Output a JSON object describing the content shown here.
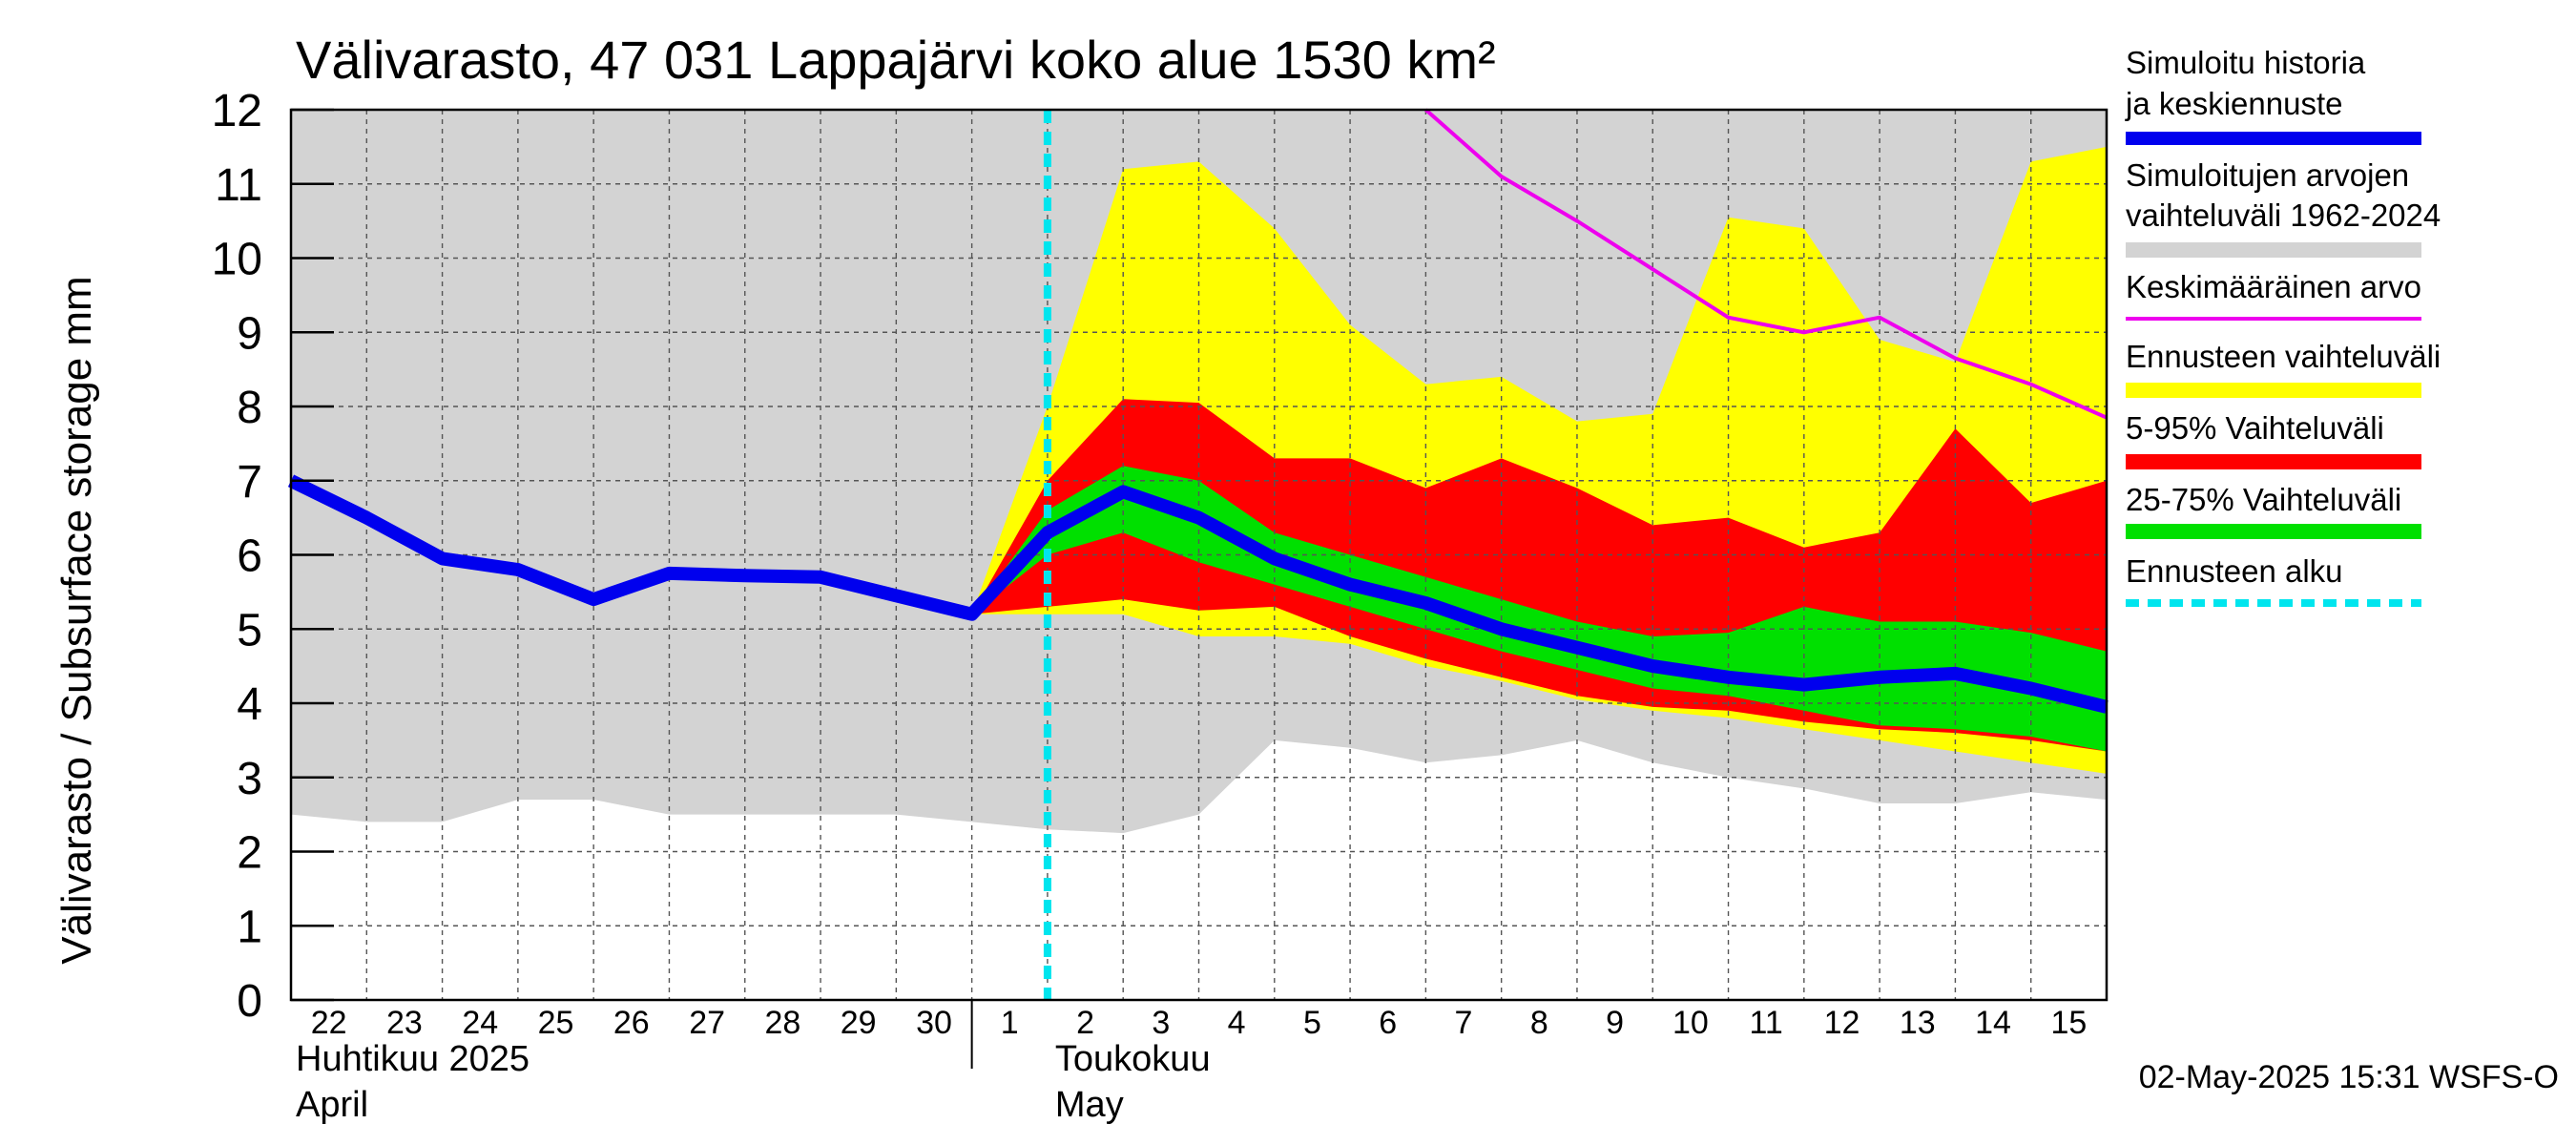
{
  "chart_data": {
    "type": "area",
    "title": "Välivarasto, 47 031 Lappajärvi koko alue 1530 km²",
    "ylabel": "Välivarasto / Subsurface storage  mm",
    "ylim": [
      0,
      12
    ],
    "yticks": [
      0,
      1,
      2,
      3,
      4,
      5,
      6,
      7,
      8,
      9,
      10,
      11,
      12
    ],
    "grid": true,
    "legend_placement": "right",
    "x_day_labels": [
      "22",
      "23",
      "24",
      "25",
      "26",
      "27",
      "28",
      "29",
      "30",
      "1",
      "2",
      "3",
      "4",
      "5",
      "6",
      "7",
      "8",
      "9",
      "10",
      "11",
      "12",
      "13",
      "14",
      "15"
    ],
    "x_dates": [
      "2025-04-22",
      "2025-04-23",
      "2025-04-24",
      "2025-04-25",
      "2025-04-26",
      "2025-04-27",
      "2025-04-28",
      "2025-04-29",
      "2025-04-30",
      "2025-05-01",
      "2025-05-02",
      "2025-05-03",
      "2025-05-04",
      "2025-05-05",
      "2025-05-06",
      "2025-05-07",
      "2025-05-08",
      "2025-05-09",
      "2025-05-10",
      "2025-05-11",
      "2025-05-12",
      "2025-05-13",
      "2025-05-14",
      "2025-05-15",
      "2025-05-16"
    ],
    "month_labels": [
      {
        "fi": "Huhtikuu  2025",
        "en": "April"
      },
      {
        "fi": "Toukokuu",
        "en": "May"
      }
    ],
    "forecast_start_date": "2025-05-02",
    "timestamp": "02-May-2025 15:31 WSFS-O",
    "colors": {
      "hist_range": "#d3d3d3",
      "forecast_range": "#ffff00",
      "p5_95": "#ff0000",
      "p25_75": "#00e000",
      "sim": "#0000ee",
      "mean": "#ee00ee",
      "forecast_start": "#00e5ee"
    },
    "legend": [
      {
        "label": "Simuloitu historia ja keskiennuste",
        "kind": "thick-line",
        "color": "#0000ee"
      },
      {
        "label": "Simuloitujen arvojen vaihteluväli 1962-2024",
        "kind": "band",
        "color": "#d3d3d3"
      },
      {
        "label": "Keskimääräinen arvo",
        "kind": "thin-line",
        "color": "#ee00ee"
      },
      {
        "label": "Ennusteen vaihteluväli",
        "kind": "band",
        "color": "#ffff00"
      },
      {
        "label": "5-95% Vaihteluväli",
        "kind": "band",
        "color": "#ff0000"
      },
      {
        "label": "25-75% Vaihteluväli",
        "kind": "band",
        "color": "#00e000"
      },
      {
        "label": "Ennusteen alku",
        "kind": "dashed",
        "color": "#00e5ee"
      }
    ],
    "series": [
      {
        "name": "Simuloitujen arvojen vaihteluväli 1962-2024",
        "x": [
          "2025-04-22",
          "2025-04-23",
          "2025-04-24",
          "2025-04-25",
          "2025-04-26",
          "2025-04-27",
          "2025-04-28",
          "2025-04-29",
          "2025-04-30",
          "2025-05-01",
          "2025-05-02",
          "2025-05-03",
          "2025-05-04",
          "2025-05-05",
          "2025-05-06",
          "2025-05-07",
          "2025-05-08",
          "2025-05-09",
          "2025-05-10",
          "2025-05-11",
          "2025-05-12",
          "2025-05-13",
          "2025-05-14",
          "2025-05-15",
          "2025-05-16"
        ],
        "lower": [
          2.5,
          2.4,
          2.4,
          2.7,
          2.7,
          2.5,
          2.5,
          2.5,
          2.5,
          2.4,
          2.3,
          2.25,
          2.5,
          3.5,
          3.4,
          3.2,
          3.3,
          3.5,
          3.2,
          3.0,
          2.85,
          2.65,
          2.65,
          2.8,
          2.7
        ],
        "upper": [
          12,
          12,
          12,
          12,
          12,
          12,
          12,
          12,
          12,
          12,
          12,
          12,
          12,
          12,
          12,
          12,
          12,
          12,
          12,
          12,
          12,
          12,
          12,
          12,
          12
        ]
      },
      {
        "name": "Ennusteen vaihteluväli",
        "x": [
          "2025-05-01",
          "2025-05-02",
          "2025-05-03",
          "2025-05-04",
          "2025-05-05",
          "2025-05-06",
          "2025-05-07",
          "2025-05-08",
          "2025-05-09",
          "2025-05-10",
          "2025-05-11",
          "2025-05-12",
          "2025-05-13",
          "2025-05-14",
          "2025-05-15",
          "2025-05-16"
        ],
        "lower": [
          5.2,
          5.2,
          5.2,
          4.9,
          4.9,
          4.8,
          4.5,
          4.3,
          4.05,
          3.9,
          3.8,
          3.65,
          3.5,
          3.35,
          3.2,
          3.05
        ],
        "upper": [
          5.2,
          8.0,
          11.2,
          11.3,
          10.4,
          9.1,
          8.3,
          8.4,
          7.8,
          7.9,
          10.55,
          10.4,
          8.9,
          8.6,
          11.3,
          11.5
        ]
      },
      {
        "name": "5-95% Vaihteluväli",
        "x": [
          "2025-05-01",
          "2025-05-02",
          "2025-05-03",
          "2025-05-04",
          "2025-05-05",
          "2025-05-06",
          "2025-05-07",
          "2025-05-08",
          "2025-05-09",
          "2025-05-10",
          "2025-05-11",
          "2025-05-12",
          "2025-05-13",
          "2025-05-14",
          "2025-05-15",
          "2025-05-16"
        ],
        "lower": [
          5.2,
          5.3,
          5.4,
          5.25,
          5.3,
          4.9,
          4.6,
          4.35,
          4.1,
          3.95,
          3.9,
          3.75,
          3.65,
          3.6,
          3.5,
          3.35
        ],
        "upper": [
          5.2,
          7.0,
          8.1,
          8.05,
          7.3,
          7.3,
          6.9,
          7.3,
          6.9,
          6.4,
          6.5,
          6.1,
          6.3,
          7.7,
          6.7,
          7.0
        ]
      },
      {
        "name": "25-75% Vaihteluväli",
        "x": [
          "2025-05-01",
          "2025-05-02",
          "2025-05-03",
          "2025-05-04",
          "2025-05-05",
          "2025-05-06",
          "2025-05-07",
          "2025-05-08",
          "2025-05-09",
          "2025-05-10",
          "2025-05-11",
          "2025-05-12",
          "2025-05-13",
          "2025-05-14",
          "2025-05-15",
          "2025-05-16"
        ],
        "lower": [
          5.2,
          6.0,
          6.3,
          5.9,
          5.6,
          5.3,
          5.0,
          4.7,
          4.45,
          4.2,
          4.1,
          3.9,
          3.7,
          3.65,
          3.55,
          3.35
        ],
        "upper": [
          5.2,
          6.6,
          7.2,
          7.0,
          6.3,
          6.0,
          5.7,
          5.4,
          5.1,
          4.9,
          4.95,
          5.3,
          5.1,
          5.1,
          4.95,
          4.7
        ]
      },
      {
        "name": "Keskimääräinen arvo",
        "x": [
          "2025-05-07",
          "2025-05-08",
          "2025-05-09",
          "2025-05-10",
          "2025-05-11",
          "2025-05-12",
          "2025-05-13",
          "2025-05-14",
          "2025-05-15",
          "2025-05-16"
        ],
        "values": [
          12.0,
          11.1,
          10.5,
          9.85,
          9.2,
          9.0,
          9.2,
          8.65,
          8.3,
          7.85
        ]
      },
      {
        "name": "Simuloitu historia ja keskiennuste",
        "x": [
          "2025-04-22",
          "2025-04-23",
          "2025-04-24",
          "2025-04-25",
          "2025-04-26",
          "2025-04-27",
          "2025-04-28",
          "2025-04-29",
          "2025-04-30",
          "2025-05-01",
          "2025-05-02",
          "2025-05-03",
          "2025-05-04",
          "2025-05-05",
          "2025-05-06",
          "2025-05-07",
          "2025-05-08",
          "2025-05-09",
          "2025-05-10",
          "2025-05-11",
          "2025-05-12",
          "2025-05-13",
          "2025-05-14",
          "2025-05-15",
          "2025-05-16"
        ],
        "values": [
          7.0,
          6.5,
          5.95,
          5.8,
          5.4,
          5.75,
          5.72,
          5.7,
          5.45,
          5.2,
          6.3,
          6.85,
          6.5,
          5.95,
          5.6,
          5.35,
          5.0,
          4.75,
          4.5,
          4.35,
          4.25,
          4.35,
          4.4,
          4.2,
          3.95
        ]
      }
    ]
  }
}
